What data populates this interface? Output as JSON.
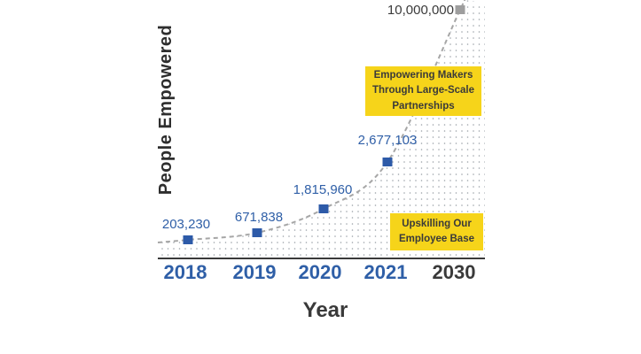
{
  "labels": {
    "x_axis_title": "Year",
    "y_axis_title": "People Empowered"
  },
  "callouts": {
    "partnerships": "Empowering Makers Through Large-Scale Partnerships",
    "upskilling": "Upskilling Our Employee Base"
  },
  "chart_data": {
    "type": "line",
    "title": "",
    "xlabel": "Year",
    "ylabel": "People Empowered",
    "y_scale": "stylized-nonlinear",
    "ylim": [
      0,
      10000000
    ],
    "line_style": "dashed",
    "marker_style": "square",
    "fill": "dotted-pattern-under-curve",
    "grid": false,
    "legend": false,
    "x_ticks": [
      "2018",
      "2019",
      "2020",
      "2021",
      "2030"
    ],
    "points": [
      {
        "x_label": "2018",
        "value": 203230,
        "value_label": "203,230",
        "projected": false
      },
      {
        "x_label": "2019",
        "value": 671838,
        "value_label": "671,838",
        "projected": false
      },
      {
        "x_label": "2020",
        "value": 1815960,
        "value_label": "1,815,960",
        "projected": false
      },
      {
        "x_label": "2021",
        "value": 2677103,
        "value_label": "2,677,103",
        "projected": false
      },
      {
        "x_label": "2030",
        "value": 10000000,
        "value_label": "10,000,000",
        "projected": true
      }
    ],
    "annotations": [
      {
        "text": "Empowering Makers Through Large-Scale Partnerships"
      },
      {
        "text": "Upskilling Our Employee Base"
      }
    ]
  },
  "colors": {
    "series_blue": "#2f5fa7",
    "marker_blue": "#2d5aa8",
    "projected_gray": "#9e9e9e",
    "dash_gray": "#a6a6a6",
    "dot_gray": "#9ba1a8",
    "highlight_yellow": "#f6d41a",
    "dark_text": "#3a3a3a",
    "axis_line": "#3a3a3a"
  }
}
